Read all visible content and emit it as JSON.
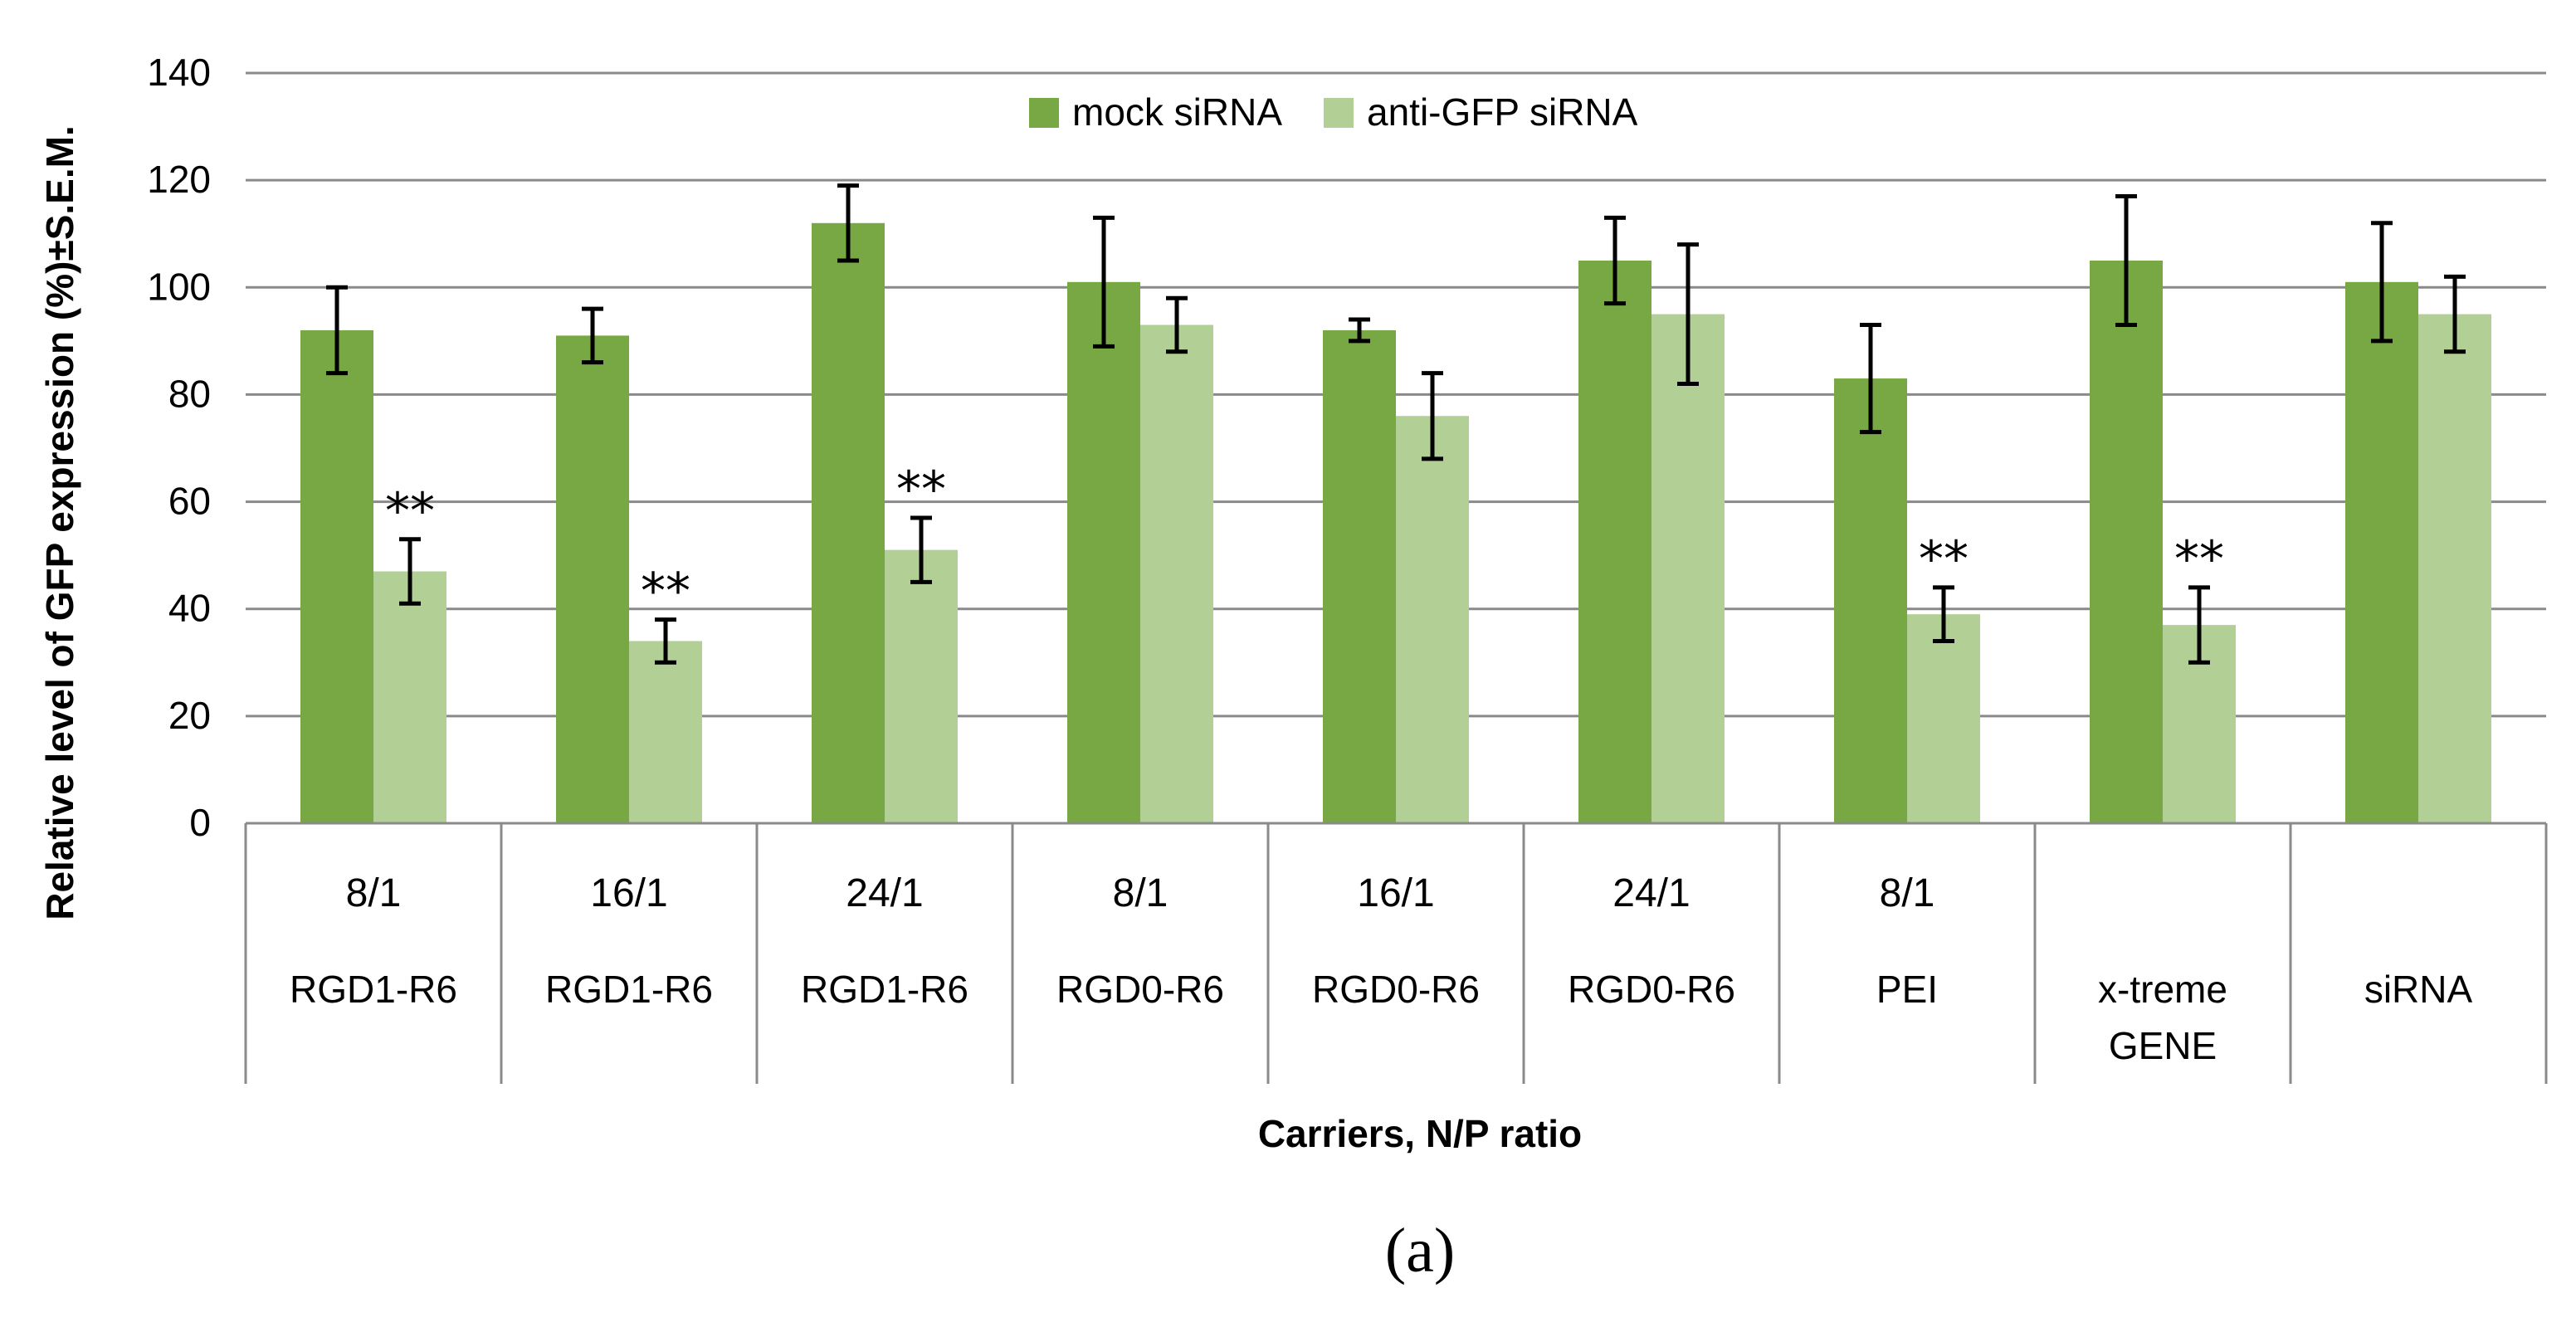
{
  "chart_data": {
    "type": "bar",
    "ylabel": "Relative level of GFP expression (%)±S.E.M.",
    "xlabel": "Carriers, N/P ratio",
    "panel_label": "(a)",
    "ylim": [
      0,
      140
    ],
    "yticks": [
      0,
      20,
      40,
      60,
      80,
      100,
      120,
      140
    ],
    "grid": "horizontal",
    "legend_position": "top-center",
    "categories": [
      {
        "ratio": "8/1",
        "carrier": [
          "RGD1-R6"
        ]
      },
      {
        "ratio": "16/1",
        "carrier": [
          "RGD1-R6"
        ]
      },
      {
        "ratio": "24/1",
        "carrier": [
          "RGD1-R6"
        ]
      },
      {
        "ratio": "8/1",
        "carrier": [
          "RGD0-R6"
        ]
      },
      {
        "ratio": "16/1",
        "carrier": [
          "RGD0-R6"
        ]
      },
      {
        "ratio": "24/1",
        "carrier": [
          "RGD0-R6"
        ]
      },
      {
        "ratio": "8/1",
        "carrier": [
          "PEI"
        ]
      },
      {
        "ratio": "",
        "carrier": [
          "x-treme",
          "GENE"
        ]
      },
      {
        "ratio": "",
        "carrier": [
          "siRNA"
        ]
      }
    ],
    "series": [
      {
        "name": "mock siRNA",
        "color": "#77a844",
        "values": [
          92,
          91,
          112,
          101,
          92,
          105,
          83,
          105,
          101
        ],
        "errors": [
          8,
          5,
          7,
          12,
          2,
          8,
          10,
          12,
          11
        ]
      },
      {
        "name": "anti-GFP siRNA",
        "color": "#b2d096",
        "values": [
          47,
          34,
          51,
          93,
          76,
          95,
          39,
          37,
          95
        ],
        "errors": [
          6,
          4,
          6,
          5,
          8,
          13,
          5,
          7,
          7
        ]
      }
    ],
    "annotations": [
      "**",
      "**",
      "**",
      "",
      "",
      "",
      "**",
      "**",
      ""
    ]
  }
}
